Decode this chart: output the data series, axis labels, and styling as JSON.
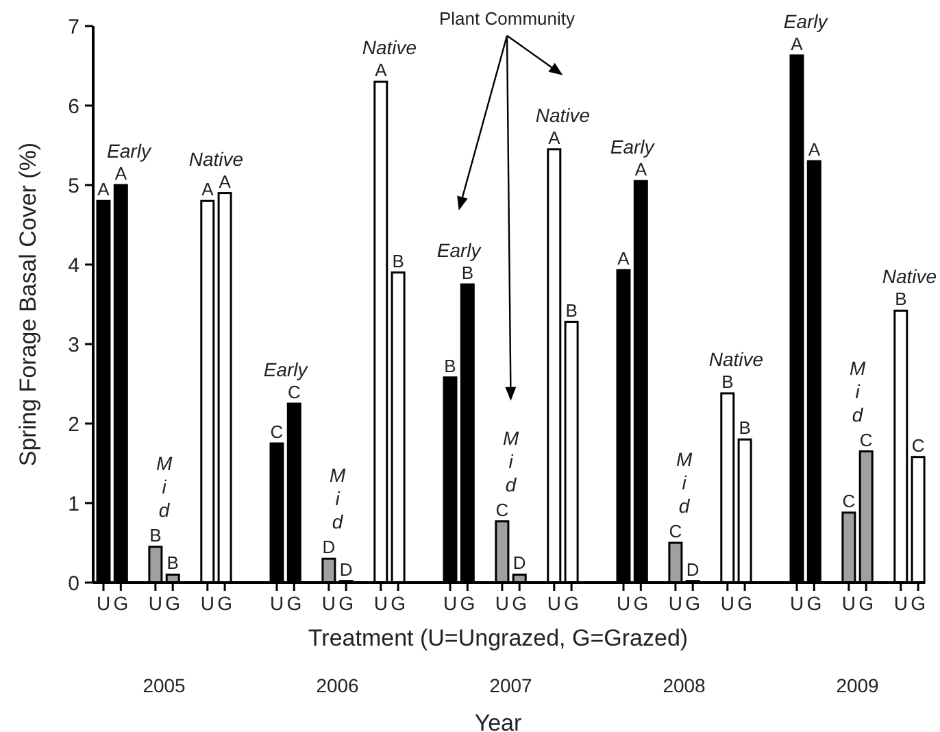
{
  "chart_data": {
    "type": "bar",
    "xlabel": "Treatment (U=Ungrazed, G=Grazed)",
    "ylabel": "Spring Forage Basal Cover (%)",
    "categories": [
      "U",
      "G",
      null,
      "U",
      "G",
      null,
      "U",
      "G",
      null,
      null,
      "U",
      "G",
      null,
      "U",
      "G",
      null,
      "U",
      "G",
      null,
      null,
      "U",
      "G",
      null,
      "U",
      "G",
      null,
      "U",
      "G",
      null,
      null,
      "U",
      "G",
      null,
      "U",
      "G",
      null,
      "U",
      "G",
      null,
      null,
      "U",
      "G",
      null,
      "U",
      "G",
      null,
      "U",
      "G"
    ],
    "series": [
      {
        "name": "Early",
        "color": "#000000",
        "values": [
          4.8,
          5.0,
          null,
          null,
          null,
          null,
          null,
          null,
          null,
          null,
          1.75,
          2.25,
          null,
          null,
          null,
          null,
          null,
          null,
          null,
          null,
          2.58,
          3.75,
          null,
          null,
          null,
          null,
          null,
          null,
          null,
          null,
          3.93,
          5.05,
          null,
          null,
          null,
          null,
          null,
          null,
          null,
          null,
          6.63,
          5.3,
          null,
          null,
          null,
          null,
          null,
          null
        ],
        "value_labels": [
          "A",
          "A",
          null,
          null,
          null,
          null,
          null,
          null,
          null,
          null,
          "C",
          "C",
          null,
          null,
          null,
          null,
          null,
          null,
          null,
          null,
          "B",
          "B",
          null,
          null,
          null,
          null,
          null,
          null,
          null,
          null,
          "A",
          "A",
          null,
          null,
          null,
          null,
          null,
          null,
          null,
          null,
          "A",
          "A",
          null,
          null,
          null,
          null,
          null,
          null
        ]
      },
      {
        "name": "Mid",
        "color": "#a0a0a0",
        "values": [
          null,
          null,
          null,
          0.45,
          0.1,
          null,
          null,
          null,
          null,
          null,
          null,
          null,
          null,
          0.3,
          0.02,
          null,
          null,
          null,
          null,
          null,
          null,
          null,
          null,
          0.77,
          0.1,
          null,
          null,
          null,
          null,
          null,
          null,
          null,
          null,
          0.5,
          0.02,
          null,
          null,
          null,
          null,
          null,
          null,
          null,
          null,
          0.88,
          1.65,
          null,
          null,
          null
        ],
        "value_labels": [
          null,
          null,
          null,
          "B",
          "B",
          null,
          null,
          null,
          null,
          null,
          null,
          null,
          null,
          "D",
          "D",
          null,
          null,
          null,
          null,
          null,
          null,
          null,
          null,
          "C",
          "D",
          null,
          null,
          null,
          null,
          null,
          null,
          null,
          null,
          "C",
          "D",
          null,
          null,
          null,
          null,
          null,
          null,
          null,
          null,
          "C",
          "C",
          null,
          null,
          null
        ]
      },
      {
        "name": "Native",
        "color": "#ffffff",
        "values": [
          null,
          null,
          null,
          null,
          null,
          null,
          4.8,
          4.9,
          null,
          null,
          null,
          null,
          null,
          null,
          null,
          null,
          6.3,
          3.9,
          null,
          null,
          null,
          null,
          null,
          null,
          null,
          null,
          5.45,
          3.28,
          null,
          null,
          null,
          null,
          null,
          null,
          null,
          null,
          2.38,
          1.8,
          null,
          null,
          null,
          null,
          null,
          null,
          null,
          null,
          3.42,
          1.58
        ],
        "value_labels": [
          null,
          null,
          null,
          null,
          null,
          null,
          "A",
          "A",
          null,
          null,
          null,
          null,
          null,
          null,
          null,
          null,
          "A",
          "B",
          null,
          null,
          null,
          null,
          null,
          null,
          null,
          null,
          "A",
          "B",
          null,
          null,
          null,
          null,
          null,
          null,
          null,
          null,
          "B",
          "B",
          null,
          null,
          null,
          null,
          null,
          null,
          null,
          null,
          "B",
          "C"
        ]
      }
    ],
    "ylim": [
      0,
      7
    ],
    "yticks": [
      0,
      1,
      2,
      3,
      4,
      5,
      6,
      7
    ],
    "grid": false,
    "annotations": [
      "Plant Community",
      "2005",
      "2006",
      "2007",
      "2008",
      "2009",
      "Year"
    ]
  }
}
